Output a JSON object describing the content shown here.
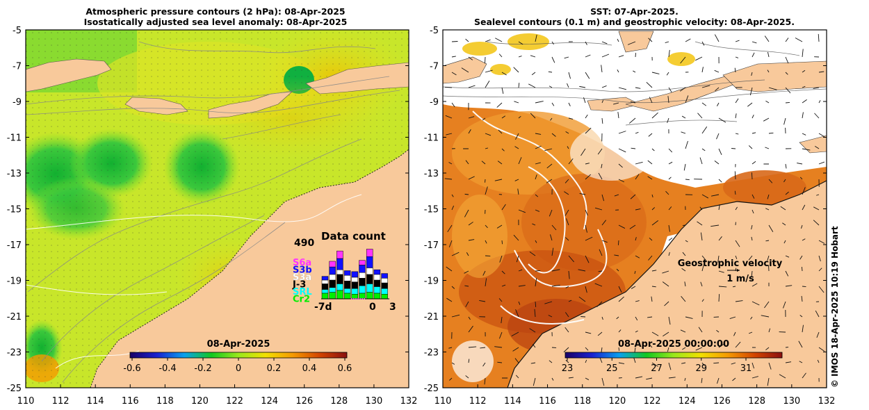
{
  "left_panel": {
    "title_line1": "Atmospheric pressure contours (2 hPa): 08-Apr-2025",
    "title_line2": "Isostatically adjusted sea level anomaly: 08-Apr-2025",
    "colorbar_label": "08-Apr-2025",
    "colorbar_ticks": [
      "-0.6",
      "-0.4",
      "-0.2",
      "0",
      "0.2",
      "0.4",
      "0.6"
    ],
    "data_count": {
      "title": "Data count",
      "max_value": "490",
      "x_labels": [
        "-7d",
        "0",
        "3"
      ],
      "missions": [
        {
          "name": "S6a",
          "color": "#ff33ff"
        },
        {
          "name": "S3b",
          "color": "#1010ff"
        },
        {
          "name": "S3a",
          "color": "#ffffff"
        },
        {
          "name": "J-3",
          "color": "#000000"
        },
        {
          "name": "SRL",
          "color": "#00ffff"
        },
        {
          "name": "Cr2",
          "color": "#00ee00"
        }
      ]
    }
  },
  "right_panel": {
    "title_line1": "SST: 07-Apr-2025.",
    "title_line2": "Sealevel contours (0.1 m) and geostrophic velocity: 08-Apr-2025.",
    "colorbar_label": "08-Apr-2025 00:00:00",
    "colorbar_ticks": [
      "23",
      "25",
      "27",
      "29",
      "31"
    ],
    "velocity_label": "Geostrophic velocity",
    "velocity_scale": "1 m/s"
  },
  "axes": {
    "lat_ticks": [
      "-5",
      "-7",
      "-9",
      "-11",
      "-13",
      "-15",
      "-17",
      "-19",
      "-21",
      "-23",
      "-25"
    ],
    "lon_ticks": [
      "110",
      "112",
      "114",
      "116",
      "118",
      "120",
      "122",
      "124",
      "126",
      "128",
      "130",
      "132"
    ]
  },
  "copyright": "© IMOS 18-Apr-2025 10:19 Hobart",
  "colors": {
    "land": "#f8c99b",
    "sla_colormap": [
      "#1a0066",
      "#1a22d0",
      "#0aa0ee",
      "#12c820",
      "#9ae81c",
      "#f2e000",
      "#f59a00",
      "#d24400",
      "#8a1010"
    ],
    "sst_colormap": [
      "#1a0066",
      "#1a22d0",
      "#0aa0ee",
      "#12c820",
      "#9ae81c",
      "#f2e000",
      "#f59a00",
      "#d24400",
      "#8a1010"
    ]
  }
}
